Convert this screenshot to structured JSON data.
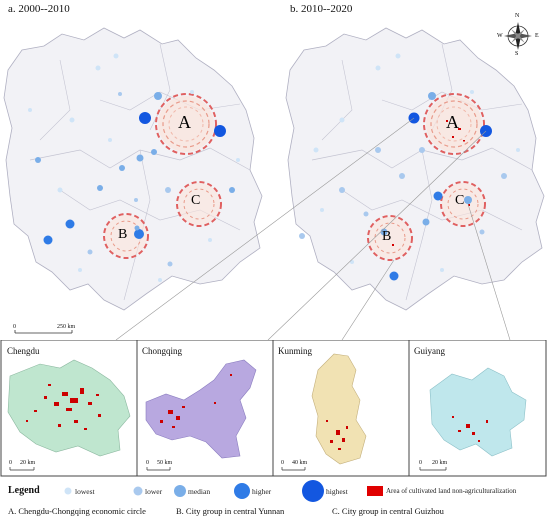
{
  "maps": {
    "left_title": "a. 2000--2010",
    "right_title": "b. 2010--2020",
    "scale": {
      "zero": "0",
      "distance": "250 km"
    }
  },
  "regions": {
    "a": "A",
    "b": "B",
    "c": "C"
  },
  "compass": {
    "n": "N",
    "s": "S",
    "e": "E",
    "w": "W"
  },
  "insets": [
    {
      "name": "Chengdu",
      "scale_zero": "0",
      "scale_distance": "20 km",
      "fill": "#bfe6cf"
    },
    {
      "name": "Chongqing",
      "scale_zero": "0",
      "scale_distance": "50 km",
      "fill": "#b8a8e0"
    },
    {
      "name": "Kunming",
      "scale_zero": "0",
      "scale_distance": "40 km",
      "fill": "#f1e2b3"
    },
    {
      "name": "Guiyang",
      "scale_zero": "0",
      "scale_distance": "20 km",
      "fill": "#bfe7ec"
    }
  ],
  "legend": {
    "title": "Legend",
    "items": [
      {
        "label": "lowest",
        "color": "#cfe4f7"
      },
      {
        "label": "lower",
        "color": "#a9c9ee"
      },
      {
        "label": "median",
        "color": "#7aaee8"
      },
      {
        "label": "higher",
        "color": "#2f7be6"
      },
      {
        "label": "highest",
        "color": "#1357e0"
      },
      {
        "label": "Area of cultivated land non-agriculturalization",
        "color": "#e00000"
      }
    ]
  },
  "captions": {
    "a": "A. Chengdu-Chongqing economic circle",
    "b": "B. City group in central Yunnan",
    "c": "C. City group in central Guizhou"
  },
  "colors": {
    "map_fill": "#f2f2f6",
    "boundary": "#b5b5c5",
    "ring": "#e06060",
    "halo": "#f8d6cc",
    "nonag": "#d40000"
  }
}
